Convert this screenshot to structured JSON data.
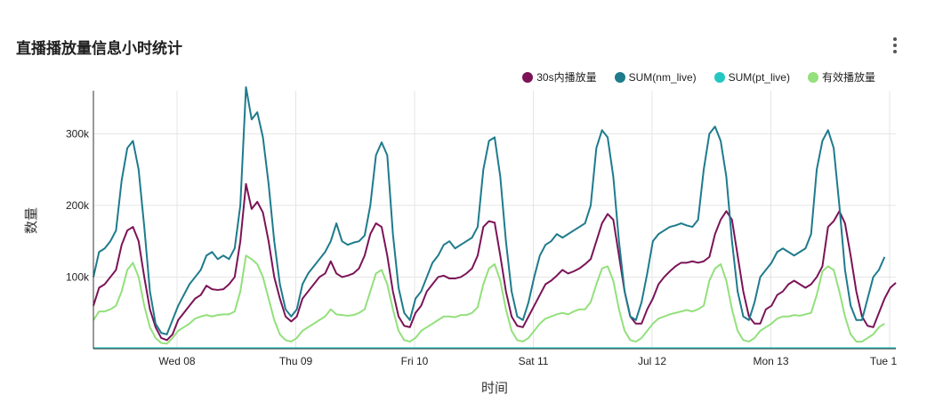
{
  "header": {
    "title": "直播播放量信息小时统计",
    "menu_icon": "more-vertical-icon"
  },
  "colors": {
    "s30": "#7b1457",
    "nm_live": "#1e7b8c",
    "pt_live": "#24c7c2",
    "effective": "#93e07c",
    "grid": "#e5e5e5",
    "axis": "#333333"
  },
  "chart_data": {
    "type": "line",
    "xlabel": "时间",
    "ylabel": "数量",
    "ylim": [
      0,
      360000
    ],
    "yticks": [
      100000,
      200000,
      300000
    ],
    "ytick_labels": [
      "100k",
      "200k",
      "300k"
    ],
    "xtick_labels": [
      "Wed 08",
      "Thu 09",
      "Fri 10",
      "Sat 11",
      "Jul 12",
      "Mon 13",
      "Tue 1"
    ],
    "legend_position": "top-right",
    "series": [
      {
        "name": "30s内播放量",
        "color_key": "s30",
        "values": [
          60000,
          85000,
          90000,
          100000,
          110000,
          145000,
          165000,
          170000,
          150000,
          100000,
          55000,
          30000,
          15000,
          12000,
          20000,
          40000,
          50000,
          60000,
          70000,
          75000,
          88000,
          83000,
          82000,
          83000,
          90000,
          100000,
          150000,
          230000,
          195000,
          205000,
          190000,
          150000,
          100000,
          70000,
          45000,
          38000,
          45000,
          70000,
          80000,
          90000,
          100000,
          105000,
          122000,
          105000,
          100000,
          102000,
          105000,
          112000,
          130000,
          160000,
          175000,
          170000,
          130000,
          80000,
          45000,
          32000,
          30000,
          50000,
          60000,
          80000,
          90000,
          100000,
          102000,
          98000,
          98000,
          100000,
          105000,
          112000,
          130000,
          170000,
          178000,
          176000,
          130000,
          80000,
          45000,
          32000,
          30000,
          45000,
          60000,
          75000,
          90000,
          95000,
          102000,
          110000,
          105000,
          108000,
          112000,
          118000,
          125000,
          150000,
          175000,
          188000,
          180000,
          130000,
          80000,
          45000,
          35000,
          35000,
          55000,
          70000,
          90000,
          100000,
          108000,
          115000,
          120000,
          120000,
          122000,
          120000,
          122000,
          128000,
          160000,
          180000,
          192000,
          180000,
          130000,
          80000,
          45000,
          35000,
          35000,
          55000,
          60000,
          75000,
          80000,
          90000,
          95000,
          90000,
          85000,
          90000,
          100000,
          115000,
          170000,
          178000,
          192000,
          175000,
          130000,
          80000,
          45000,
          32000,
          30000,
          50000,
          70000,
          85000,
          92000
        ]
      },
      {
        "name": "SUM(nm_live)",
        "color_key": "nm_live",
        "values": [
          100000,
          135000,
          140000,
          150000,
          165000,
          235000,
          280000,
          290000,
          250000,
          170000,
          80000,
          35000,
          22000,
          20000,
          40000,
          60000,
          75000,
          90000,
          100000,
          110000,
          130000,
          135000,
          125000,
          130000,
          125000,
          140000,
          200000,
          365000,
          320000,
          330000,
          295000,
          230000,
          150000,
          90000,
          55000,
          45000,
          55000,
          90000,
          105000,
          115000,
          125000,
          135000,
          150000,
          175000,
          150000,
          145000,
          148000,
          150000,
          158000,
          200000,
          270000,
          288000,
          270000,
          160000,
          85000,
          50000,
          40000,
          70000,
          80000,
          100000,
          120000,
          130000,
          145000,
          150000,
          140000,
          145000,
          150000,
          155000,
          170000,
          250000,
          290000,
          295000,
          240000,
          150000,
          80000,
          45000,
          40000,
          65000,
          100000,
          130000,
          145000,
          150000,
          160000,
          155000,
          160000,
          165000,
          170000,
          175000,
          200000,
          280000,
          305000,
          295000,
          240000,
          150000,
          80000,
          45000,
          40000,
          65000,
          105000,
          150000,
          160000,
          165000,
          170000,
          172000,
          175000,
          172000,
          170000,
          180000,
          250000,
          300000,
          310000,
          290000,
          240000,
          150000,
          80000,
          45000,
          40000,
          65000,
          100000,
          110000,
          120000,
          135000,
          140000,
          135000,
          130000,
          135000,
          140000,
          160000,
          250000,
          290000,
          305000,
          280000,
          200000,
          110000,
          60000,
          40000,
          40000,
          70000,
          100000,
          110000,
          128000
        ]
      },
      {
        "name": "SUM(pt_live)",
        "color_key": "pt_live",
        "values": [
          800,
          800,
          800,
          800,
          800,
          800,
          800,
          800,
          800,
          800,
          800,
          800,
          800,
          800,
          800,
          800,
          800,
          800,
          800,
          800,
          800,
          800,
          800,
          800,
          800,
          800,
          800,
          800,
          800,
          800,
          800,
          800,
          800,
          800,
          800,
          800,
          800,
          800,
          800,
          800,
          800,
          800,
          800,
          800,
          800,
          800,
          800,
          800,
          800,
          800,
          800,
          800,
          800,
          800,
          800,
          800,
          800,
          800,
          800,
          800,
          800,
          800,
          800,
          800,
          800,
          800,
          800,
          800,
          800,
          800,
          800,
          800,
          800,
          800,
          800,
          800,
          800,
          800,
          800,
          800,
          800,
          800,
          800,
          800,
          800,
          800,
          800,
          800,
          800,
          800,
          800,
          800,
          800,
          800,
          800,
          800,
          800,
          800,
          800,
          800,
          800,
          800,
          800,
          800,
          800,
          800,
          800,
          800,
          800,
          800,
          800,
          800,
          800,
          800,
          800,
          800,
          800,
          800,
          800,
          800,
          800,
          800,
          800,
          800,
          800,
          800,
          800,
          800,
          800,
          800,
          800,
          800,
          800,
          800,
          800,
          800,
          800,
          800,
          800,
          800,
          800,
          800,
          800
        ]
      },
      {
        "name": "有效播放量",
        "color_key": "effective",
        "values": [
          40000,
          52000,
          52000,
          55000,
          60000,
          80000,
          110000,
          120000,
          100000,
          60000,
          30000,
          15000,
          8000,
          7000,
          15000,
          25000,
          30000,
          35000,
          42000,
          45000,
          47000,
          45000,
          47000,
          48000,
          48000,
          52000,
          80000,
          130000,
          125000,
          118000,
          100000,
          70000,
          40000,
          20000,
          12000,
          10000,
          15000,
          25000,
          30000,
          35000,
          40000,
          45000,
          55000,
          48000,
          47000,
          46000,
          47000,
          50000,
          55000,
          80000,
          105000,
          110000,
          90000,
          55000,
          25000,
          12000,
          10000,
          15000,
          25000,
          30000,
          35000,
          40000,
          45000,
          45000,
          44000,
          47000,
          47000,
          50000,
          58000,
          90000,
          112000,
          118000,
          95000,
          55000,
          25000,
          12000,
          10000,
          15000,
          25000,
          35000,
          42000,
          45000,
          48000,
          50000,
          48000,
          52000,
          55000,
          55000,
          65000,
          90000,
          112000,
          115000,
          95000,
          55000,
          25000,
          12000,
          10000,
          15000,
          25000,
          35000,
          42000,
          45000,
          48000,
          50000,
          52000,
          54000,
          52000,
          55000,
          60000,
          95000,
          112000,
          118000,
          95000,
          55000,
          25000,
          12000,
          10000,
          15000,
          25000,
          30000,
          35000,
          42000,
          45000,
          45000,
          47000,
          46000,
          48000,
          50000,
          75000,
          108000,
          115000,
          110000,
          80000,
          45000,
          20000,
          10000,
          10000,
          15000,
          20000,
          30000,
          35000
        ]
      }
    ]
  }
}
